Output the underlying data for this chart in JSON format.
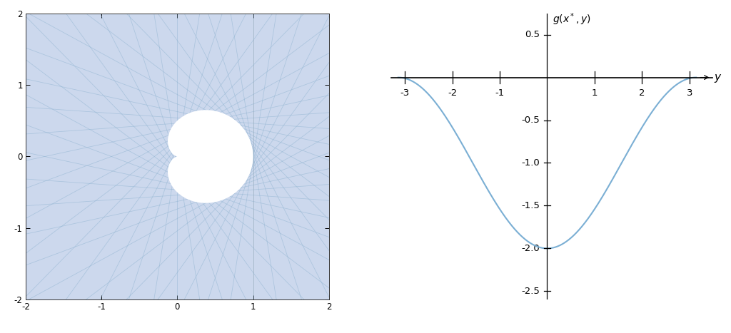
{
  "left_xlim": [
    -2,
    2
  ],
  "left_ylim": [
    -2,
    2
  ],
  "right_ylim": [
    -2.6,
    0.75
  ],
  "bg_color": "#ccd8ed",
  "line_color": "#8ab0ce",
  "curve_color": "#7bafd4",
  "n_lines": 42,
  "line_alpha": 0.5,
  "line_width": 0.55,
  "left_xticks": [
    -2,
    -1,
    0,
    1,
    2
  ],
  "left_yticks": [
    -2,
    -1,
    0,
    1,
    2
  ],
  "right_xticks": [
    -3,
    -2,
    -1,
    1,
    2,
    3
  ],
  "right_yticks": [
    -2.5,
    -2.0,
    -1.5,
    -1.0,
    -0.5,
    0.5
  ],
  "right_ytick_labels": [
    "-2.5",
    "-2.0",
    "-1.5",
    "-1.0",
    "-0.5",
    "0.5"
  ]
}
